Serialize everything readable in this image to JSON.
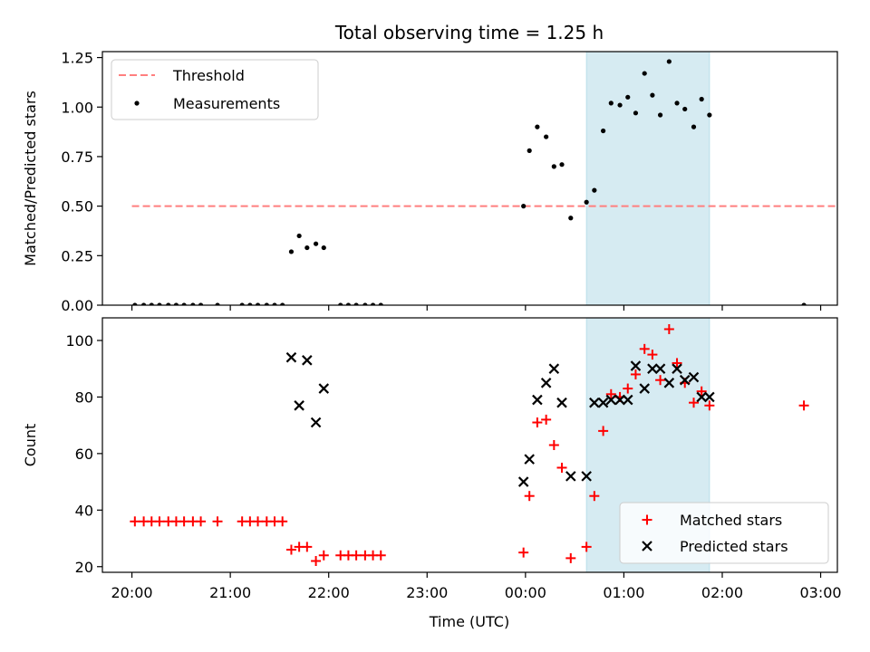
{
  "chart_data": {
    "title": "Total observing time = 1.25 h",
    "xlabel": "Time (UTC)",
    "xticks": [
      "20:00",
      "21:00",
      "22:00",
      "23:00",
      "00:00",
      "01:00",
      "02:00",
      "03:00"
    ],
    "xlim_hours": [
      19.7,
      27.17
    ],
    "xtick_hours": [
      20,
      21,
      22,
      23,
      24,
      25,
      26,
      27
    ],
    "shaded_span_hours": [
      24.62,
      25.87
    ],
    "shade_color": "#add8e6",
    "panels": [
      {
        "type": "scatter",
        "ylabel": "Matched/Predicted stars",
        "ylim": [
          0,
          1.28
        ],
        "yticks": [
          "0.00",
          "0.25",
          "0.50",
          "0.75",
          "1.00",
          "1.25"
        ],
        "ytick_values": [
          0,
          0.25,
          0.5,
          0.75,
          1.0,
          1.25
        ],
        "threshold": {
          "name": "Threshold",
          "y": 0.5,
          "x_range": [
            20.0,
            27.83
          ],
          "color": "#ff7f7f"
        },
        "legend": [
          "Threshold",
          "Measurements"
        ],
        "legend_position": "upper-left",
        "series": [
          {
            "name": "Measurements",
            "color": "#000000",
            "x": [
              20.03,
              20.12,
              20.2,
              20.28,
              20.37,
              20.45,
              20.53,
              20.62,
              20.7,
              20.87,
              21.12,
              21.2,
              21.28,
              21.37,
              21.45,
              21.53,
              21.62,
              21.7,
              21.78,
              21.87,
              21.95,
              22.12,
              22.2,
              22.28,
              22.37,
              22.45,
              22.53,
              23.98,
              24.04,
              24.12,
              24.21,
              24.29,
              24.37,
              24.46,
              24.62,
              24.7,
              24.79,
              24.87,
              24.96,
              25.04,
              25.12,
              25.21,
              25.29,
              25.37,
              25.46,
              25.54,
              25.62,
              25.71,
              25.79,
              25.87,
              26.83
            ],
            "y": [
              0,
              0,
              0,
              0,
              0,
              0,
              0,
              0,
              0,
              0,
              0,
              0,
              0,
              0,
              0,
              0,
              0.27,
              0.35,
              0.29,
              0.31,
              0.29,
              0,
              0,
              0,
              0,
              0,
              0,
              0.5,
              0.78,
              0.9,
              0.85,
              0.7,
              0.71,
              0.44,
              0.52,
              0.58,
              0.88,
              1.02,
              1.01,
              1.05,
              0.97,
              1.17,
              1.06,
              0.96,
              1.23,
              1.02,
              0.99,
              0.9,
              1.04,
              0.96,
              0
            ]
          }
        ]
      },
      {
        "type": "scatter",
        "ylabel": "Count",
        "ylim": [
          18,
          108
        ],
        "yticks": [
          "20",
          "40",
          "60",
          "80",
          "100"
        ],
        "ytick_values": [
          20,
          40,
          60,
          80,
          100
        ],
        "legend": [
          "Matched stars",
          "Predicted stars"
        ],
        "legend_position": "lower-right",
        "series": [
          {
            "name": "Matched stars",
            "marker": "plus",
            "color": "#ff0000",
            "x": [
              20.03,
              20.12,
              20.2,
              20.28,
              20.37,
              20.45,
              20.53,
              20.62,
              20.7,
              20.87,
              21.12,
              21.2,
              21.28,
              21.37,
              21.45,
              21.53,
              21.62,
              21.7,
              21.78,
              21.87,
              21.95,
              22.12,
              22.2,
              22.28,
              22.37,
              22.45,
              22.53,
              23.98,
              24.04,
              24.12,
              24.21,
              24.29,
              24.37,
              24.46,
              24.62,
              24.7,
              24.79,
              24.87,
              24.96,
              25.04,
              25.12,
              25.21,
              25.29,
              25.37,
              25.46,
              25.54,
              25.62,
              25.71,
              25.79,
              25.87,
              26.83
            ],
            "y": [
              36,
              36,
              36,
              36,
              36,
              36,
              36,
              36,
              36,
              36,
              36,
              36,
              36,
              36,
              36,
              36,
              26,
              27,
              27,
              22,
              24,
              24,
              24,
              24,
              24,
              24,
              24,
              25,
              45,
              71,
              72,
              63,
              55,
              23,
              27,
              45,
              68,
              81,
              80,
              83,
              88,
              97,
              95,
              86,
              104,
              92,
              85,
              78,
              82,
              77,
              77
            ]
          },
          {
            "name": "Predicted stars",
            "marker": "x",
            "color": "#000000",
            "x": [
              21.62,
              21.7,
              21.78,
              21.87,
              21.95,
              23.98,
              24.04,
              24.12,
              24.21,
              24.29,
              24.37,
              24.46,
              24.62,
              24.7,
              24.79,
              24.87,
              24.96,
              25.04,
              25.12,
              25.21,
              25.29,
              25.37,
              25.46,
              25.54,
              25.62,
              25.71,
              25.79,
              25.87
            ],
            "y": [
              94,
              77,
              93,
              71,
              83,
              50,
              58,
              79,
              85,
              90,
              78,
              52,
              52,
              78,
              78,
              79,
              79,
              79,
              91,
              83,
              90,
              90,
              85,
              90,
              86,
              87,
              80,
              80
            ]
          }
        ]
      }
    ]
  }
}
